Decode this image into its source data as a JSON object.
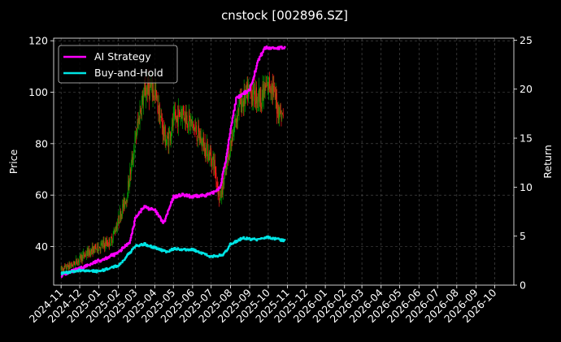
{
  "chart_data": {
    "type": "line",
    "title": "cnstock [002896.SZ]",
    "xlabel": "",
    "ylabel_left": "Price",
    "ylabel_right": "Return",
    "ylim_left": [
      25,
      121
    ],
    "ylim_right": [
      0,
      25.2
    ],
    "yticks_left": [
      40,
      60,
      80,
      100,
      120
    ],
    "yticks_right": [
      0,
      5,
      10,
      15,
      20,
      25
    ],
    "x_range": [
      "2024-10-20",
      "2026-11-01"
    ],
    "x_tick_dates": [
      "2024-11-01",
      "2024-12-01",
      "2025-01-01",
      "2025-02-01",
      "2025-03-01",
      "2025-04-01",
      "2025-05-01",
      "2025-06-01",
      "2025-07-01",
      "2025-08-01",
      "2025-09-01",
      "2025-10-01",
      "2025-11-01",
      "2025-12-01",
      "2026-01-01",
      "2026-02-01",
      "2026-03-01",
      "2026-04-01",
      "2026-05-01",
      "2026-06-01",
      "2026-07-01",
      "2026-08-01",
      "2026-09-01",
      "2026-10-01"
    ],
    "x_tick_labels": [
      "2024-11",
      "2024-12",
      "2025-01",
      "2025-02",
      "2025-03",
      "2025-04",
      "2025-05",
      "2025-06",
      "2025-07",
      "2025-08",
      "2025-09",
      "2025-10",
      "2025-11",
      "2025-12",
      "2026-01",
      "2026-02",
      "2026-03",
      "2026-04",
      "2026-05",
      "2026-06",
      "2026-07",
      "2026-08",
      "2026-09",
      "2026-10"
    ],
    "grid": true,
    "legend_position": "top-left",
    "colors": {
      "up": "#00a000",
      "down": "#ff1a1a",
      "ai": "#ff00ff",
      "bh": "#00e5e5",
      "grid": "#555555"
    },
    "candles": {
      "anchors": [
        [
          "2024-11-01",
          31
        ],
        [
          "2024-11-20",
          33
        ],
        [
          "2024-12-10",
          37
        ],
        [
          "2025-01-01",
          40
        ],
        [
          "2025-01-20",
          42
        ],
        [
          "2025-02-01",
          50
        ],
        [
          "2025-02-15",
          60
        ],
        [
          "2025-03-01",
          82
        ],
        [
          "2025-03-10",
          95
        ],
        [
          "2025-03-20",
          102
        ],
        [
          "2025-04-01",
          100
        ],
        [
          "2025-04-10",
          90
        ],
        [
          "2025-04-20",
          80
        ],
        [
          "2025-05-01",
          88
        ],
        [
          "2025-05-15",
          93
        ],
        [
          "2025-06-01",
          87
        ],
        [
          "2025-06-20",
          79
        ],
        [
          "2025-07-05",
          73
        ],
        [
          "2025-07-15",
          58
        ],
        [
          "2025-07-25",
          70
        ],
        [
          "2025-08-01",
          80
        ],
        [
          "2025-08-15",
          95
        ],
        [
          "2025-09-01",
          100
        ],
        [
          "2025-09-20",
          98
        ],
        [
          "2025-10-05",
          104
        ],
        [
          "2025-10-15",
          95
        ],
        [
          "2025-10-25",
          90
        ]
      ],
      "volatility": 0.045
    },
    "series": [
      {
        "name": "AI Strategy",
        "axis": "right",
        "points": [
          [
            "2024-11-01",
            1.0
          ],
          [
            "2024-12-01",
            1.7
          ],
          [
            "2025-01-01",
            2.5
          ],
          [
            "2025-02-01",
            3.3
          ],
          [
            "2025-02-20",
            4.5
          ],
          [
            "2025-03-01",
            7.0
          ],
          [
            "2025-03-15",
            8.0
          ],
          [
            "2025-04-01",
            7.6
          ],
          [
            "2025-04-15",
            6.3
          ],
          [
            "2025-05-01",
            9.0
          ],
          [
            "2025-05-15",
            9.2
          ],
          [
            "2025-06-01",
            9.0
          ],
          [
            "2025-07-01",
            9.3
          ],
          [
            "2025-07-15",
            10.0
          ],
          [
            "2025-07-25",
            13.0
          ],
          [
            "2025-08-01",
            16.0
          ],
          [
            "2025-08-10",
            19.0
          ],
          [
            "2025-09-01",
            20.0
          ],
          [
            "2025-09-15",
            23.0
          ],
          [
            "2025-09-25",
            24.2
          ],
          [
            "2025-10-28",
            24.2
          ]
        ]
      },
      {
        "name": "Buy-and-Hold",
        "axis": "right",
        "points": [
          [
            "2024-11-01",
            1.2
          ],
          [
            "2024-12-01",
            1.5
          ],
          [
            "2025-01-01",
            1.4
          ],
          [
            "2025-02-01",
            2.0
          ],
          [
            "2025-03-01",
            4.0
          ],
          [
            "2025-03-15",
            4.2
          ],
          [
            "2025-04-01",
            3.8
          ],
          [
            "2025-04-20",
            3.4
          ],
          [
            "2025-05-01",
            3.7
          ],
          [
            "2025-06-01",
            3.6
          ],
          [
            "2025-07-01",
            2.9
          ],
          [
            "2025-07-20",
            3.1
          ],
          [
            "2025-08-01",
            4.2
          ],
          [
            "2025-08-20",
            4.8
          ],
          [
            "2025-09-15",
            4.6
          ],
          [
            "2025-10-01",
            4.9
          ],
          [
            "2025-10-28",
            4.5
          ]
        ]
      }
    ]
  }
}
